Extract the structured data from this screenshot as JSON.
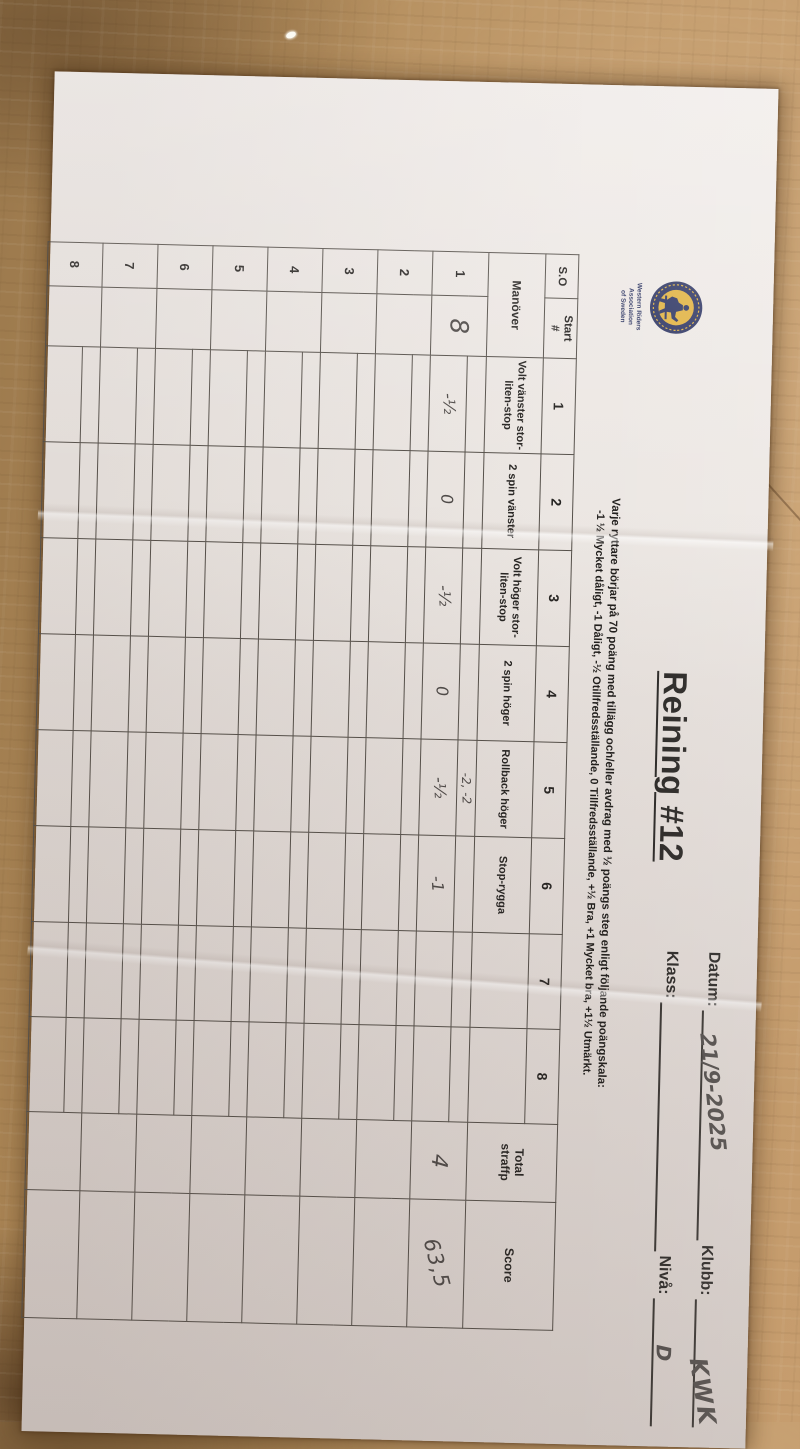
{
  "colors": {
    "paper": "#e9e4e0",
    "wood": "#b38b5c",
    "ink": "#262422",
    "pencil": "#4e4a48",
    "logo_navy": "#2b3361",
    "logo_gold": "#e0b13e"
  },
  "logo": {
    "caption_line1": "Western Riders Association",
    "caption_line2": "of Sweden"
  },
  "title": "Reining #12",
  "header": {
    "datum_label": "Datum:",
    "datum_value": "21/9-2025",
    "klubb_label": "Klubb:",
    "klubb_value": "KWK",
    "klass_label": "Klass:",
    "klass_value": "",
    "niva_label": "Nivå:",
    "niva_value": "D"
  },
  "scale": {
    "line1": "Varje ryttare börjar på 70 poäng med tillägg och/eller avdrag med ½ poängs steg enligt följande poängskala:",
    "line2": "-1 ½ Mycket dåligt, -1 Dåligt, -½ Otillfredsställande, 0 Tillfredsställande, +½ Bra, +1 Mycket bra, +1½ Utmärkt."
  },
  "table": {
    "so_label": "S.O",
    "start_label_line1": "Start",
    "start_label_line2": "#",
    "manover_label": "Manöver",
    "total_label_line1": "Total",
    "total_label_line2": "straffp",
    "score_label": "Score",
    "maneuver_numbers": [
      "1",
      "2",
      "3",
      "4",
      "5",
      "6",
      "7",
      "8"
    ],
    "maneuvers": [
      "Volt vänster stor-liten-stop",
      "2 spin vänster",
      "Volt höger stor-liten-stop",
      "2 spin höger",
      "Rollback höger",
      "Stop-rygga",
      "",
      ""
    ],
    "rows": [
      {
        "so": "1",
        "start_no": "8",
        "penalties": [
          "",
          "",
          "",
          "",
          "-2, -2",
          "",
          "",
          ""
        ],
        "scores": [
          "-½",
          "0",
          "-½",
          "0",
          "-½",
          "-1",
          "",
          ""
        ],
        "total_straffp": "4",
        "score": "63,5"
      },
      {
        "so": "2",
        "start_no": "",
        "penalties": [
          "",
          "",
          "",
          "",
          "",
          "",
          "",
          ""
        ],
        "scores": [
          "",
          "",
          "",
          "",
          "",
          "",
          "",
          ""
        ],
        "total_straffp": "",
        "score": ""
      },
      {
        "so": "3",
        "start_no": "",
        "penalties": [
          "",
          "",
          "",
          "",
          "",
          "",
          "",
          ""
        ],
        "scores": [
          "",
          "",
          "",
          "",
          "",
          "",
          "",
          ""
        ],
        "total_straffp": "",
        "score": ""
      },
      {
        "so": "4",
        "start_no": "",
        "penalties": [
          "",
          "",
          "",
          "",
          "",
          "",
          "",
          ""
        ],
        "scores": [
          "",
          "",
          "",
          "",
          "",
          "",
          "",
          ""
        ],
        "total_straffp": "",
        "score": ""
      },
      {
        "so": "5",
        "start_no": "",
        "penalties": [
          "",
          "",
          "",
          "",
          "",
          "",
          "",
          ""
        ],
        "scores": [
          "",
          "",
          "",
          "",
          "",
          "",
          "",
          ""
        ],
        "total_straffp": "",
        "score": ""
      },
      {
        "so": "6",
        "start_no": "",
        "penalties": [
          "",
          "",
          "",
          "",
          "",
          "",
          "",
          ""
        ],
        "scores": [
          "",
          "",
          "",
          "",
          "",
          "",
          "",
          ""
        ],
        "total_straffp": "",
        "score": ""
      },
      {
        "so": "7",
        "start_no": "",
        "penalties": [
          "",
          "",
          "",
          "",
          "",
          "",
          "",
          ""
        ],
        "scores": [
          "",
          "",
          "",
          "",
          "",
          "",
          "",
          ""
        ],
        "total_straffp": "",
        "score": ""
      },
      {
        "so": "8",
        "start_no": "",
        "penalties": [
          "",
          "",
          "",
          "",
          "",
          "",
          "",
          ""
        ],
        "scores": [
          "",
          "",
          "",
          "",
          "",
          "",
          "",
          ""
        ],
        "total_straffp": "",
        "score": ""
      }
    ]
  }
}
